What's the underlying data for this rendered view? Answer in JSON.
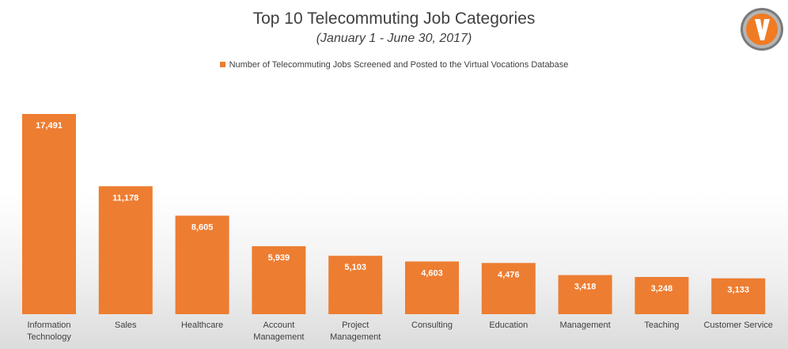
{
  "chart_data": {
    "type": "bar",
    "title": "Top 10 Telecommuting Job Categories",
    "subtitle": "(January 1 - June 30, 2017)",
    "legend": {
      "label": "Number of Telecommuting Jobs Screened and Posted to the Virtual Vocations Database",
      "placement": "top-center"
    },
    "categories": [
      [
        "Information",
        "Technology"
      ],
      [
        "Sales"
      ],
      [
        "Healthcare"
      ],
      [
        "Account",
        "Management"
      ],
      [
        "Project",
        "Management"
      ],
      [
        "Consulting"
      ],
      [
        "Education"
      ],
      [
        "Management"
      ],
      [
        "Teaching"
      ],
      [
        "Customer Service"
      ]
    ],
    "values": [
      17491,
      11178,
      8605,
      5939,
      5103,
      4603,
      4476,
      3418,
      3248,
      3133
    ],
    "value_labels": [
      "17,491",
      "11,178",
      "8,605",
      "5,939",
      "5,103",
      "4,603",
      "4,476",
      "3,418",
      "3,248",
      "3,133"
    ],
    "ylim": [
      0,
      17491
    ],
    "grid": false,
    "bar_color": "#ED7D31"
  },
  "logo": {
    "letter": "V",
    "ring_color": "#8c8c8c",
    "fill_color": "#F07B23"
  }
}
